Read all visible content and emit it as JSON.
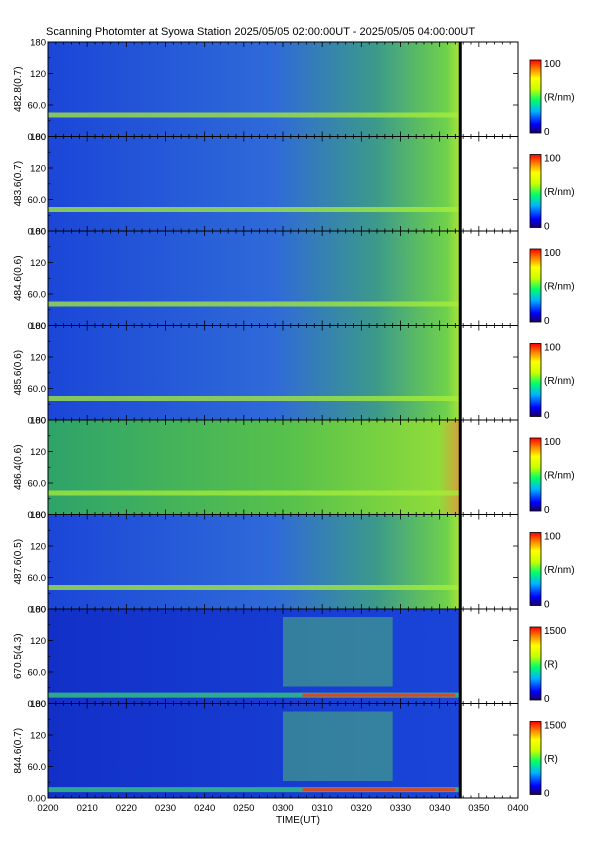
{
  "title": "Scanning Photomter at Syowa Station 2025/05/05 02:00:00UT - 2025/05/05 04:00:00UT",
  "x_axis": {
    "label": "TIME(UT)",
    "ticks": [
      "0200",
      "0210",
      "0220",
      "0230",
      "0240",
      "0250",
      "0300",
      "0310",
      "0320",
      "0330",
      "0340",
      "0350",
      "0400"
    ]
  },
  "chart_data": [
    {
      "type": "heatmap",
      "ylabel": "482.8(0.7)",
      "y_ticks": [
        "0.00",
        "60.0",
        "120",
        "180"
      ],
      "ylim": [
        0,
        180
      ],
      "colorbar": {
        "max": "100",
        "unit": "(R/nm)",
        "min": "0"
      },
      "data_end_time": "03:45"
    },
    {
      "type": "heatmap",
      "ylabel": "483.6(0.7)",
      "y_ticks": [
        "0.00",
        "60.0",
        "120",
        "180"
      ],
      "ylim": [
        0,
        180
      ],
      "colorbar": {
        "max": "100",
        "unit": "(R/nm)",
        "min": "0"
      },
      "data_end_time": "03:45"
    },
    {
      "type": "heatmap",
      "ylabel": "484.6(0.6)",
      "y_ticks": [
        "0.00",
        "60.0",
        "120",
        "180"
      ],
      "ylim": [
        0,
        180
      ],
      "colorbar": {
        "max": "100",
        "unit": "(R/nm)",
        "min": "0"
      },
      "data_end_time": "03:45"
    },
    {
      "type": "heatmap",
      "ylabel": "485.6(0.6)",
      "y_ticks": [
        "0.00",
        "60.0",
        "120",
        "180"
      ],
      "ylim": [
        0,
        180
      ],
      "colorbar": {
        "max": "100",
        "unit": "(R/nm)",
        "min": "0"
      },
      "data_end_time": "03:45"
    },
    {
      "type": "heatmap",
      "ylabel": "486.4(0.6)",
      "y_ticks": [
        "0.00",
        "60.0",
        "120",
        "180"
      ],
      "ylim": [
        0,
        180
      ],
      "colorbar": {
        "max": "100",
        "unit": "(R/nm)",
        "min": "0"
      },
      "data_end_time": "03:45"
    },
    {
      "type": "heatmap",
      "ylabel": "487.6(0.5)",
      "y_ticks": [
        "0.00",
        "60.0",
        "120",
        "180"
      ],
      "ylim": [
        0,
        180
      ],
      "colorbar": {
        "max": "100",
        "unit": "(R/nm)",
        "min": "0"
      },
      "data_end_time": "03:45"
    },
    {
      "type": "heatmap",
      "ylabel": "670.5(4.3)",
      "y_ticks": [
        "0.00",
        "60.0",
        "120",
        "180"
      ],
      "ylim": [
        0,
        180
      ],
      "colorbar": {
        "max": "1500",
        "unit": "(R)",
        "min": "0"
      },
      "data_end_time": "03:45"
    },
    {
      "type": "heatmap",
      "ylabel": "844.6(0.7)",
      "y_ticks": [
        "0.00",
        "60.0",
        "120",
        "180"
      ],
      "ylim": [
        0,
        180
      ],
      "colorbar": {
        "max": "1500",
        "unit": "(R)",
        "min": "0"
      },
      "data_end_time": "03:45"
    }
  ]
}
